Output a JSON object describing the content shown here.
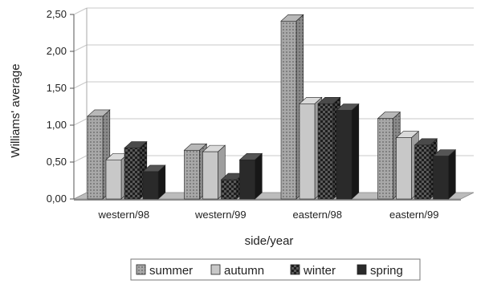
{
  "chart_data": {
    "type": "bar",
    "style": "3d-clustered-column",
    "title": "",
    "xlabel": "side/year",
    "ylabel": "Williams' average",
    "categories": [
      "western/98",
      "western/99",
      "eastern/98",
      "eastern/99"
    ],
    "y_tick_labels": [
      "0,00",
      "0,50",
      "1,00",
      "1,50",
      "2,00",
      "2,50"
    ],
    "ylim": [
      0,
      2.5
    ],
    "grid": true,
    "legend_position": "bottom",
    "series": [
      {
        "name": "summer",
        "values": [
          1.12,
          0.66,
          2.41,
          1.09
        ],
        "color": "#9a9a9a",
        "pattern": "dots"
      },
      {
        "name": "autumn",
        "values": [
          0.53,
          0.64,
          1.29,
          0.83
        ],
        "color": "#c8c8c8",
        "pattern": "solid"
      },
      {
        "name": "winter",
        "values": [
          0.69,
          0.26,
          1.29,
          0.73
        ],
        "color": "#3a3a3a",
        "pattern": "checker"
      },
      {
        "name": "spring",
        "values": [
          0.37,
          0.53,
          1.2,
          0.58
        ],
        "color": "#2a2a2a",
        "pattern": "solid"
      }
    ]
  }
}
